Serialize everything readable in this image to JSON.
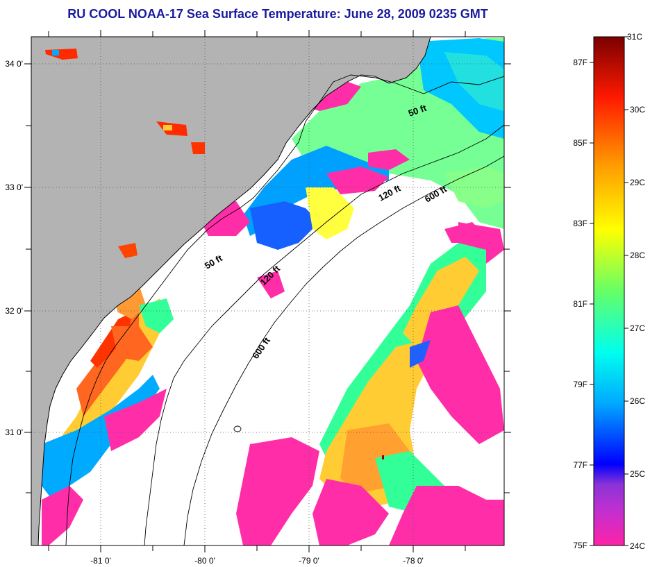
{
  "title": "RU COOL  NOAA-17  Sea Surface Temperature:  June 28, 2009 0235 GMT",
  "map": {
    "lon_ticks": [
      "-81 0'",
      "-80 0'",
      "-79 0'",
      "-78 0'"
    ],
    "lat_ticks": [
      "34 0'",
      "33 0'",
      "32 0'",
      "31 0'"
    ],
    "contours": {
      "c50_north": "50 ft",
      "c50_mid": "50 ft",
      "c120_north": "120 ft",
      "c120_mid": "120 ft",
      "c600_north": "600 ft",
      "c600_mid": "600 ft"
    },
    "land_color": "#b3b3b3",
    "ocean_no_data_color": "#ffffff"
  },
  "colorbar": {
    "fahrenheit_labels": [
      "87F",
      "85F",
      "83F",
      "81F",
      "79F",
      "77F",
      "75F"
    ],
    "celsius_labels": [
      "31C",
      "30C",
      "29C",
      "28C",
      "27C",
      "26C",
      "25C",
      "24C"
    ],
    "colors": [
      "#ff22a8",
      "#8a33d6",
      "#0000ff",
      "#00aaff",
      "#00ffee",
      "#66ff66",
      "#ffff00",
      "#ff9900",
      "#ff1a00",
      "#7a0000"
    ]
  }
}
